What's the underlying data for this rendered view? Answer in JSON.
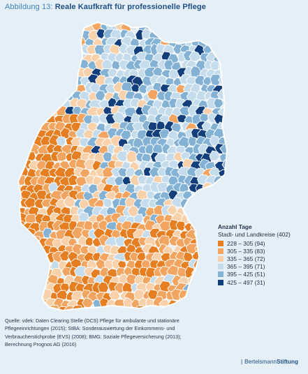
{
  "title": {
    "label": "Abbildung 13:",
    "name": "Reale Kaufkraft für professionelle Pflege"
  },
  "legend": {
    "heading": "Anzahl Tage",
    "subheading": "Stadt- und Landkreise (402)",
    "items": [
      {
        "label": "228 – 305 (94)",
        "color": "#e67e22"
      },
      {
        "label": "305 – 335 (83)",
        "color": "#f2a560"
      },
      {
        "label": "335 – 365 (72)",
        "color": "#f8d0a9"
      },
      {
        "label": "365 – 395 (71)",
        "color": "#c5dced"
      },
      {
        "label": "395 – 425 (51)",
        "color": "#84b2d5"
      },
      {
        "label": "425 – 497 (31)",
        "color": "#123f7c"
      }
    ]
  },
  "source": {
    "lines": [
      "Quelle: vdek: Daten Clearing Stelle (DCS) Pflege für ambulante und stationäre",
      "Pflegeeinrichtungen (2015); StBA: Sonderauswertung der Einkommens- und",
      "Verbraucherstichprobe (EVS) (2008); BMG: Soziale Pflegeversicherung (2013);",
      "Berechnung Prognos AG (2016)"
    ]
  },
  "brand": {
    "part1": "Bertelsmann",
    "part2": "Stiftung"
  }
}
